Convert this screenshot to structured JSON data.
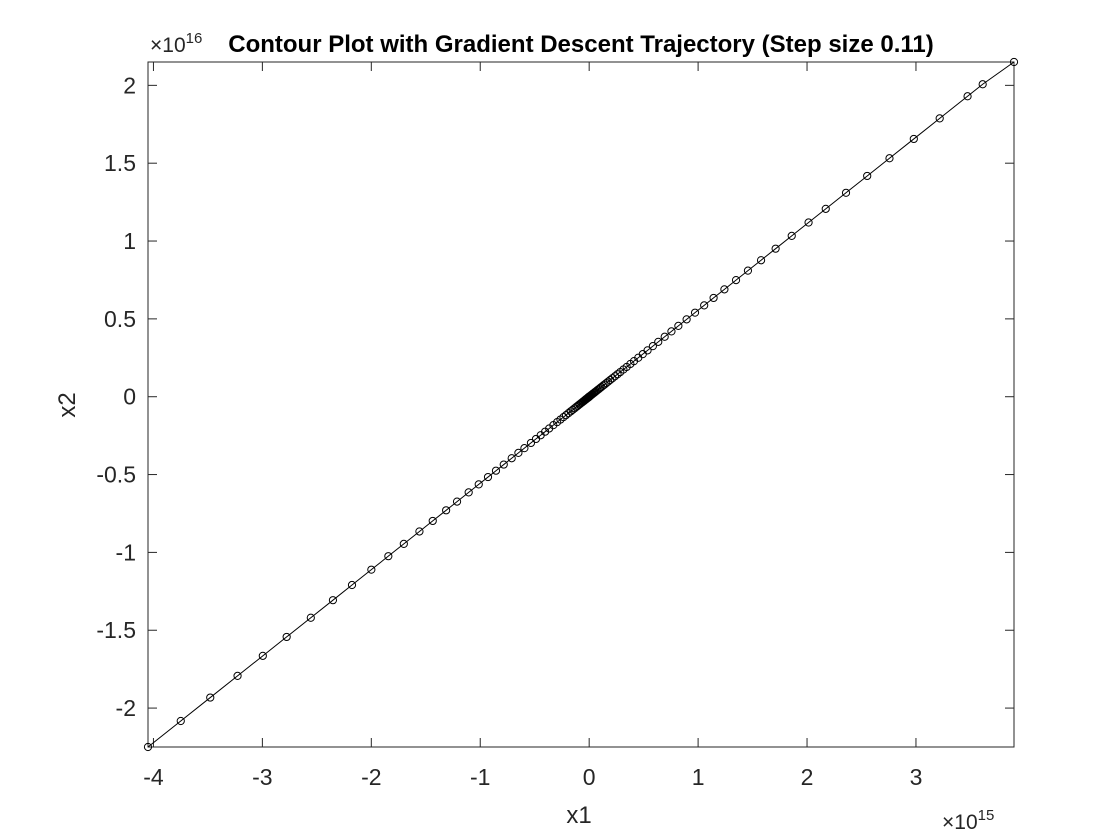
{
  "chart_data": {
    "type": "line",
    "title": "Contour Plot with Gradient Descent Trajectory (Step size 0.11)",
    "xlabel": "x1",
    "ylabel": "x2",
    "xlim": [
      -4050000000000000.0,
      3900000000000000.0
    ],
    "ylim": [
      -2.25e+16,
      2.15e+16
    ],
    "x_exponent_label": "×10",
    "x_exponent": "15",
    "y_exponent_label": "×10",
    "y_exponent": "16",
    "xticks": [
      {
        "value": -4000000000000000.0,
        "label": "-4"
      },
      {
        "value": -3000000000000000.0,
        "label": "-3"
      },
      {
        "value": -2000000000000000.0,
        "label": "-2"
      },
      {
        "value": -1000000000000000.0,
        "label": "-1"
      },
      {
        "value": 0,
        "label": "0"
      },
      {
        "value": 1000000000000000.0,
        "label": "1"
      },
      {
        "value": 2000000000000000.0,
        "label": "2"
      },
      {
        "value": 3000000000000000.0,
        "label": "3"
      }
    ],
    "yticks": [
      {
        "value": -2e+16,
        "label": "-2"
      },
      {
        "value": -1.5e+16,
        "label": "-1.5"
      },
      {
        "value": -1e+16,
        "label": "-1"
      },
      {
        "value": -5000000000000000.0,
        "label": "-0.5"
      },
      {
        "value": 0,
        "label": "0"
      },
      {
        "value": 5000000000000000.0,
        "label": "0.5"
      },
      {
        "value": 1e+16,
        "label": "1"
      },
      {
        "value": 1.5e+16,
        "label": "1.5"
      },
      {
        "value": 2e+16,
        "label": "2"
      }
    ],
    "grid": false,
    "legend": "none",
    "series": [
      {
        "line_color": "#000000",
        "marker": "circle",
        "marker_color": "#000000",
        "x": [
          -4050000000000000.0,
          -3749300000000000.0,
          -3478500000000000.0,
          -3227900000000000.0,
          -2996000000000000.0,
          -2777100000000000.0,
          -2555500000000000.0,
          -2352300000000000.0,
          -2177300000000000.0,
          -1999600000000000.0,
          -1843600000000000.0,
          -1701600000000000.0,
          -1558200000000000.0,
          -1436100000000000.0,
          -1313200000000000.0,
          -1212900000000000.0,
          -1106200000000000.0,
          -1013800000000000.0,
          -928700000000000.0,
          -855600000000000.0,
          -784200000000000.0,
          -711300000000000.0,
          -649600000000000.0,
          -594500000000000.0,
          -534300000000000.0,
          -488000000000000.0,
          -445100000000000.0,
          -404500000000000.0,
          -367200000000000.0,
          -328900000000000.0,
          -294000000000000.0,
          -263900000000000.0,
          -236000000000000.0,
          -212600000000000.0,
          -189800000000000.0,
          -169100000000000.0,
          -151800000000000.0,
          -134200000000000.0,
          -117000000000000.0,
          -103700000000000.0,
          -90900000000000.0,
          -79700000000000.0,
          -69600000000000.0,
          -60100000000000.0,
          -51400000000000.0,
          -44200000000000.0,
          -37300000000000.0,
          -31600000000000.0,
          -25700000000000.0,
          -21300000000000.0,
          -17000000000000.0,
          -13100000000000.0,
          -9700000000000.0,
          -6900000000000.0,
          -4600000000000.0,
          -2700000000000.0,
          -1200000000000.0,
          0,
          3500000000000.0,
          8900000000000.0,
          15500000000000.0,
          22400000000000.0,
          29700000000000.0,
          37800000000000.0,
          45800000000000.0,
          55400000000000.0,
          64600000000000.0,
          74600000000000.0,
          87100000000000.0,
          99400000000000.0,
          111400000000000.0,
          126400000000000.0,
          140500000000000.0,
          157000000000000.0,
          174400000000000.0,
          192900000000000.0,
          213100000000000.0,
          236800000000000.0,
          260200000000000.0,
          285300000000000.0,
          314300000000000.0,
          344000000000000.0,
          378300000000000.0,
          411500000000000.0,
          450600000000000.0,
          492100000000000.0,
          536000000000000.0,
          584900000000000.0,
          634300000000000.0,
          693200000000000.0,
          755300000000000.0,
          818900000000000.0,
          894600000000000.0,
          971900000000000.0,
          1055800000000000.0,
          1142200000000000.0,
          1241500000000000.0,
          1348200000000000.0,
          1457500000000000.0,
          1578000000000000.0,
          1711600000000000.0,
          1859500000000000.0,
          2014100000000000.0,
          2171800000000000.0,
          2357800000000000.0,
          2552300000000000.0,
          2756900000000000.0,
          2980200000000000.0,
          3217800000000000.0,
          3473700000000000.0,
          3612400000000000.0,
          3900000000000000.0
        ],
        "y": [
          -2.25e+16,
          -2.083e+16,
          -1.9325e+16,
          -1.7933e+16,
          -1.6645e+16,
          -1.5429e+16,
          -1.4198e+16,
          -1.3069e+16,
          -1.2096e+16,
          -1.1109e+16,
          -1.0242e+16,
          -9453000000000000.0,
          -8657000000000000.0,
          -7978000000000000.0,
          -7296000000000000.0,
          -6738000000000000.0,
          -6146000000000000.0,
          -5632000000000000.0,
          -5160000000000000.0,
          -4753000000000000.0,
          -4357000000000000.0,
          -3952000000000000.0,
          -3609000000000000.0,
          -3303000000000000.0,
          -2968000000000000.0,
          -2711000000000000.0,
          -2473000000000000.0,
          -2247000000000000.0,
          -2040000000000000.0,
          -1827000000000000.0,
          -1633000000000000.0,
          -1466000000000000.0,
          -1311000000000000.0,
          -1181000000000000.0,
          -1054000000000000.0,
          -939000000000000.0,
          -843000000000000.0,
          -746000000000000.0,
          -650000000000000.0,
          -576000000000000.0,
          -505000000000000.0,
          -443000000000000.0,
          -387000000000000.0,
          -334000000000000.0,
          -286000000000000.0,
          -246000000000000.0,
          -207000000000000.0,
          -176000000000000.0,
          -143000000000000.0,
          -118000000000000.0,
          -94000000000000.0,
          -73000000000000.0,
          -54000000000000.0,
          -38000000000000.0,
          -26000000000000.0,
          -15000000000000.0,
          -7000000000000.0,
          0,
          19000000000000.0,
          49000000000000.0,
          86000000000000.0,
          124000000000000.0,
          165000000000000.0,
          210000000000000.0,
          254000000000000.0,
          308000000000000.0,
          359000000000000.0,
          414000000000000.0,
          484000000000000.0,
          552000000000000.0,
          619000000000000.0,
          702000000000000.0,
          781000000000000.0,
          872000000000000.0,
          969000000000000.0,
          1072000000000000.0,
          1184000000000000.0,
          1316000000000000.0,
          1446000000000000.0,
          1585000000000000.0,
          1746000000000000.0,
          1911000000000000.0,
          2102000000000000.0,
          2286000000000000.0,
          2503000000000000.0,
          2734000000000000.0,
          2978000000000000.0,
          3249000000000000.0,
          3524000000000000.0,
          3851000000000000.0,
          4196000000000000.0,
          4549000000000000.0,
          4970000000000000.0,
          5399000000000000.0,
          5866000000000000.0,
          6346000000000000.0,
          6897000000000000.0,
          7490000000000000.0,
          8097000000000000.0,
          8767000000000000.0,
          9509000000000000.0,
          1.0331e+16,
          1.1189e+16,
          1.2066e+16,
          1.3099e+16,
          1.418e+16,
          1.5316e+16,
          1.6557e+16,
          1.7877e+16,
          1.9298e+16,
          2.0069e+16,
          2.15e+16
        ]
      }
    ]
  }
}
